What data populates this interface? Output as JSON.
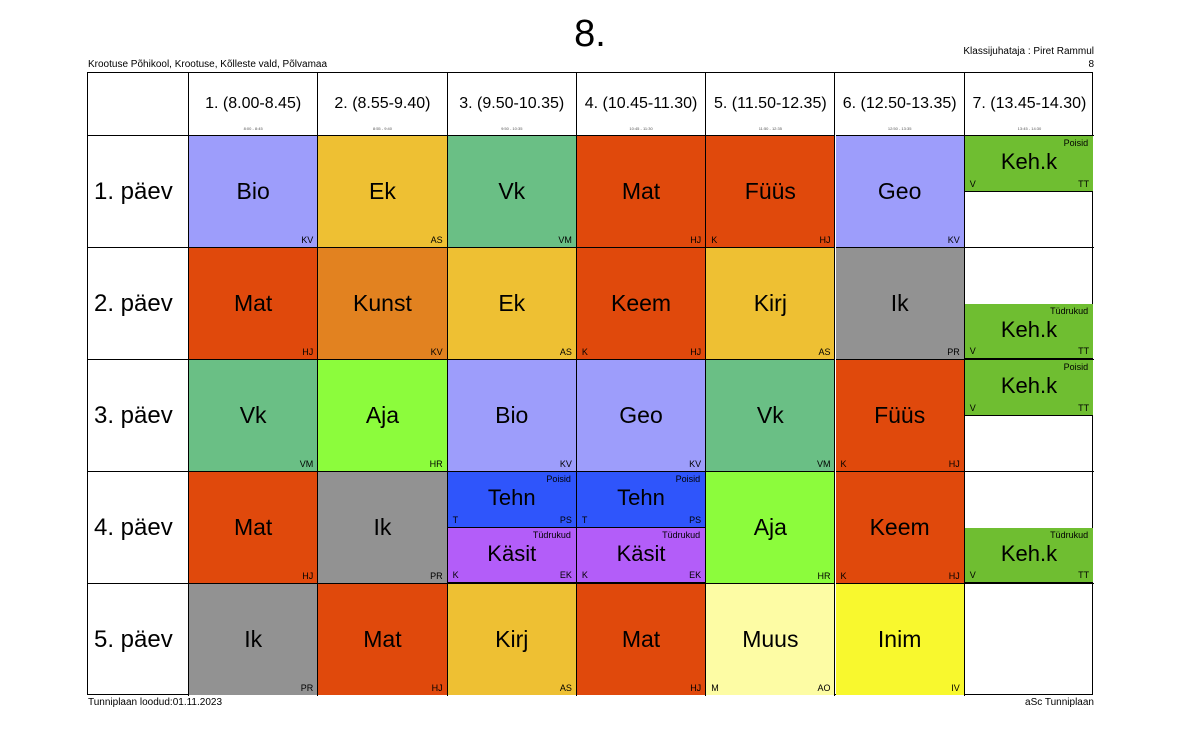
{
  "header": {
    "title": "8.",
    "school": "Krootuse Põhikool, Krootuse, Kõlleste vald, Põlvamaa",
    "teacher": "Klassijuhataja : Piret Rammul",
    "page_number": "8"
  },
  "footer": {
    "created": "Tunniplaan loodud:01.11.2023",
    "software": "aSc Tunniplaan"
  },
  "periods": [
    {
      "label": "1. (8.00-8.45)",
      "time": "8:00 - 8:45"
    },
    {
      "label": "2. (8.55-9.40)",
      "time": "8:55 - 9:40"
    },
    {
      "label": "3. (9.50-10.35)",
      "time": "9:50 - 10:35"
    },
    {
      "label": "4. (10.45-11.30)",
      "time": "10:45 - 11:30"
    },
    {
      "label": "5. (11.50-12.35)",
      "time": "11:50 - 12:35"
    },
    {
      "label": "6. (12.50-13.35)",
      "time": "12:50 - 13:35"
    },
    {
      "label": "7. (13.45-14.30)",
      "time": "13:45 - 14:30"
    }
  ],
  "days": [
    "1. päev",
    "2. päev",
    "3. päev",
    "4. päev",
    "5. päev"
  ],
  "colors": {
    "bio_geo": "#9d9dfb",
    "ek": "#eec033",
    "vk": "#6abf85",
    "mat": "#e0490c",
    "kunst": "#e28220",
    "ik": "#929292",
    "aja": "#8cfc3c",
    "tehn": "#2f55fb",
    "kasit": "#b35df9",
    "muus": "#fdfca4",
    "inim": "#f8f82e",
    "keh": "#6fbe31"
  },
  "lessons": [
    {
      "day": 0,
      "period": 0,
      "subject": "Bio",
      "teacher": "KV",
      "room": "",
      "group": "",
      "color": "#9d9dfb",
      "part": "full"
    },
    {
      "day": 0,
      "period": 1,
      "subject": "Ek",
      "teacher": "AS",
      "room": "",
      "group": "",
      "color": "#eec033",
      "part": "full"
    },
    {
      "day": 0,
      "period": 2,
      "subject": "Vk",
      "teacher": "VM",
      "room": "",
      "group": "",
      "color": "#6abf85",
      "part": "full"
    },
    {
      "day": 0,
      "period": 3,
      "subject": "Mat",
      "teacher": "HJ",
      "room": "",
      "group": "",
      "color": "#e0490c",
      "part": "full"
    },
    {
      "day": 0,
      "period": 4,
      "subject": "Füüs",
      "teacher": "HJ",
      "room": "K",
      "group": "",
      "color": "#e0490c",
      "part": "full"
    },
    {
      "day": 0,
      "period": 5,
      "subject": "Geo",
      "teacher": "KV",
      "room": "",
      "group": "",
      "color": "#9d9dfb",
      "part": "full"
    },
    {
      "day": 0,
      "period": 6,
      "subject": "Keh.k",
      "teacher": "TT",
      "room": "V",
      "group": "Poisid",
      "color": "#6fbe31",
      "part": "top"
    },
    {
      "day": 1,
      "period": 0,
      "subject": "Mat",
      "teacher": "HJ",
      "room": "",
      "group": "",
      "color": "#e0490c",
      "part": "full"
    },
    {
      "day": 1,
      "period": 1,
      "subject": "Kunst",
      "teacher": "KV",
      "room": "",
      "group": "",
      "color": "#e28220",
      "part": "full"
    },
    {
      "day": 1,
      "period": 2,
      "subject": "Ek",
      "teacher": "AS",
      "room": "",
      "group": "",
      "color": "#eec033",
      "part": "full"
    },
    {
      "day": 1,
      "period": 3,
      "subject": "Keem",
      "teacher": "HJ",
      "room": "K",
      "group": "",
      "color": "#e0490c",
      "part": "full"
    },
    {
      "day": 1,
      "period": 4,
      "subject": "Kirj",
      "teacher": "AS",
      "room": "",
      "group": "",
      "color": "#eec033",
      "part": "full"
    },
    {
      "day": 1,
      "period": 5,
      "subject": "Ik",
      "teacher": "PR",
      "room": "",
      "group": "",
      "color": "#929292",
      "part": "full"
    },
    {
      "day": 1,
      "period": 6,
      "subject": "Keh.k",
      "teacher": "TT",
      "room": "V",
      "group": "Tüdrukud",
      "color": "#6fbe31",
      "part": "bottom"
    },
    {
      "day": 2,
      "period": 0,
      "subject": "Vk",
      "teacher": "VM",
      "room": "",
      "group": "",
      "color": "#6abf85",
      "part": "full"
    },
    {
      "day": 2,
      "period": 1,
      "subject": "Aja",
      "teacher": "HR",
      "room": "",
      "group": "",
      "color": "#8cfc3c",
      "part": "full"
    },
    {
      "day": 2,
      "period": 2,
      "subject": "Bio",
      "teacher": "KV",
      "room": "",
      "group": "",
      "color": "#9d9dfb",
      "part": "full"
    },
    {
      "day": 2,
      "period": 3,
      "subject": "Geo",
      "teacher": "KV",
      "room": "",
      "group": "",
      "color": "#9d9dfb",
      "part": "full"
    },
    {
      "day": 2,
      "period": 4,
      "subject": "Vk",
      "teacher": "VM",
      "room": "",
      "group": "",
      "color": "#6abf85",
      "part": "full"
    },
    {
      "day": 2,
      "period": 5,
      "subject": "Füüs",
      "teacher": "HJ",
      "room": "K",
      "group": "",
      "color": "#e0490c",
      "part": "full"
    },
    {
      "day": 2,
      "period": 6,
      "subject": "Keh.k",
      "teacher": "TT",
      "room": "V",
      "group": "Poisid",
      "color": "#6fbe31",
      "part": "top"
    },
    {
      "day": 3,
      "period": 0,
      "subject": "Mat",
      "teacher": "HJ",
      "room": "",
      "group": "",
      "color": "#e0490c",
      "part": "full"
    },
    {
      "day": 3,
      "period": 1,
      "subject": "Ik",
      "teacher": "PR",
      "room": "",
      "group": "",
      "color": "#929292",
      "part": "full"
    },
    {
      "day": 3,
      "period": 2,
      "subject": "Tehn",
      "teacher": "PS",
      "room": "T",
      "group": "Poisid",
      "color": "#2f55fb",
      "part": "top"
    },
    {
      "day": 3,
      "period": 2,
      "subject": "Käsit",
      "teacher": "EK",
      "room": "K",
      "group": "Tüdrukud",
      "color": "#b35df9",
      "part": "bottom"
    },
    {
      "day": 3,
      "period": 3,
      "subject": "Tehn",
      "teacher": "PS",
      "room": "T",
      "group": "Poisid",
      "color": "#2f55fb",
      "part": "top"
    },
    {
      "day": 3,
      "period": 3,
      "subject": "Käsit",
      "teacher": "EK",
      "room": "K",
      "group": "Tüdrukud",
      "color": "#b35df9",
      "part": "bottom"
    },
    {
      "day": 3,
      "period": 4,
      "subject": "Aja",
      "teacher": "HR",
      "room": "",
      "group": "",
      "color": "#8cfc3c",
      "part": "full"
    },
    {
      "day": 3,
      "period": 5,
      "subject": "Keem",
      "teacher": "HJ",
      "room": "K",
      "group": "",
      "color": "#e0490c",
      "part": "full"
    },
    {
      "day": 3,
      "period": 6,
      "subject": "Keh.k",
      "teacher": "TT",
      "room": "V",
      "group": "Tüdrukud",
      "color": "#6fbe31",
      "part": "bottom"
    },
    {
      "day": 4,
      "period": 0,
      "subject": "Ik",
      "teacher": "PR",
      "room": "",
      "group": "",
      "color": "#929292",
      "part": "full"
    },
    {
      "day": 4,
      "period": 1,
      "subject": "Mat",
      "teacher": "HJ",
      "room": "",
      "group": "",
      "color": "#e0490c",
      "part": "full"
    },
    {
      "day": 4,
      "period": 2,
      "subject": "Kirj",
      "teacher": "AS",
      "room": "",
      "group": "",
      "color": "#eec033",
      "part": "full"
    },
    {
      "day": 4,
      "period": 3,
      "subject": "Mat",
      "teacher": "HJ",
      "room": "",
      "group": "",
      "color": "#e0490c",
      "part": "full"
    },
    {
      "day": 4,
      "period": 4,
      "subject": "Muus",
      "teacher": "AO",
      "room": "M",
      "group": "",
      "color": "#fdfca4",
      "part": "full"
    },
    {
      "day": 4,
      "period": 5,
      "subject": "Inim",
      "teacher": "IV",
      "room": "",
      "group": "",
      "color": "#f8f82e",
      "part": "full"
    }
  ]
}
